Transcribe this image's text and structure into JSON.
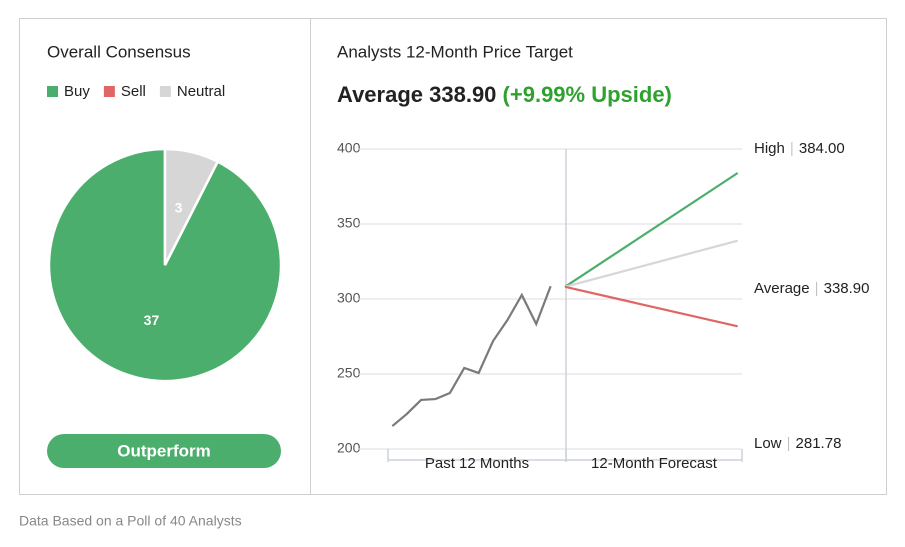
{
  "chart_data": [
    {
      "type": "pie",
      "title": "Overall Consensus",
      "categories": [
        "Buy",
        "Sell",
        "Neutral"
      ],
      "values": [
        37,
        0,
        3
      ],
      "colors": [
        "#4cae6d",
        "#e06666",
        "#d6d6d6"
      ],
      "legend": "top"
    },
    {
      "type": "line",
      "title": "Analysts 12-Month Price Target",
      "subtitle": "Average 338.90",
      "subtitle_note": "(+9.99% Upside)",
      "section_labels": [
        "Past 12 Months",
        "12-Month Forecast"
      ],
      "xlim": [
        -12.3,
        12.3
      ],
      "ylim": [
        200,
        400
      ],
      "yticks": [
        200,
        250,
        300,
        350,
        400
      ],
      "grid": true,
      "series": [
        {
          "color": "#7a7a7a",
          "x": [
            -12,
            -11,
            -10,
            -9,
            -8,
            -7,
            -6,
            -5,
            -4,
            -3,
            -2,
            -1
          ],
          "values": [
            215.3,
            223.3,
            232.7,
            233.3,
            237.3,
            254,
            250.7,
            272,
            286,
            302.7,
            283.3,
            308.5
          ]
        },
        {
          "name": "High",
          "color": "#4cae6d",
          "x": [
            0,
            12
          ],
          "values": [
            308.12,
            384
          ],
          "value_labels": [
            null,
            "384.00"
          ]
        },
        {
          "name": "Average",
          "color": "#d6d6d6",
          "x": [
            0,
            12
          ],
          "values": [
            308.12,
            338.9
          ],
          "value_labels": [
            null,
            "338.90"
          ]
        },
        {
          "name": "Low",
          "color": "#e06666",
          "x": [
            0,
            12
          ],
          "values": [
            308.12,
            281.78
          ],
          "value_labels": [
            null,
            "281.78"
          ]
        }
      ]
    }
  ],
  "rating": "Outperform",
  "footer": "Data Based on a Poll of 40 Analysts"
}
